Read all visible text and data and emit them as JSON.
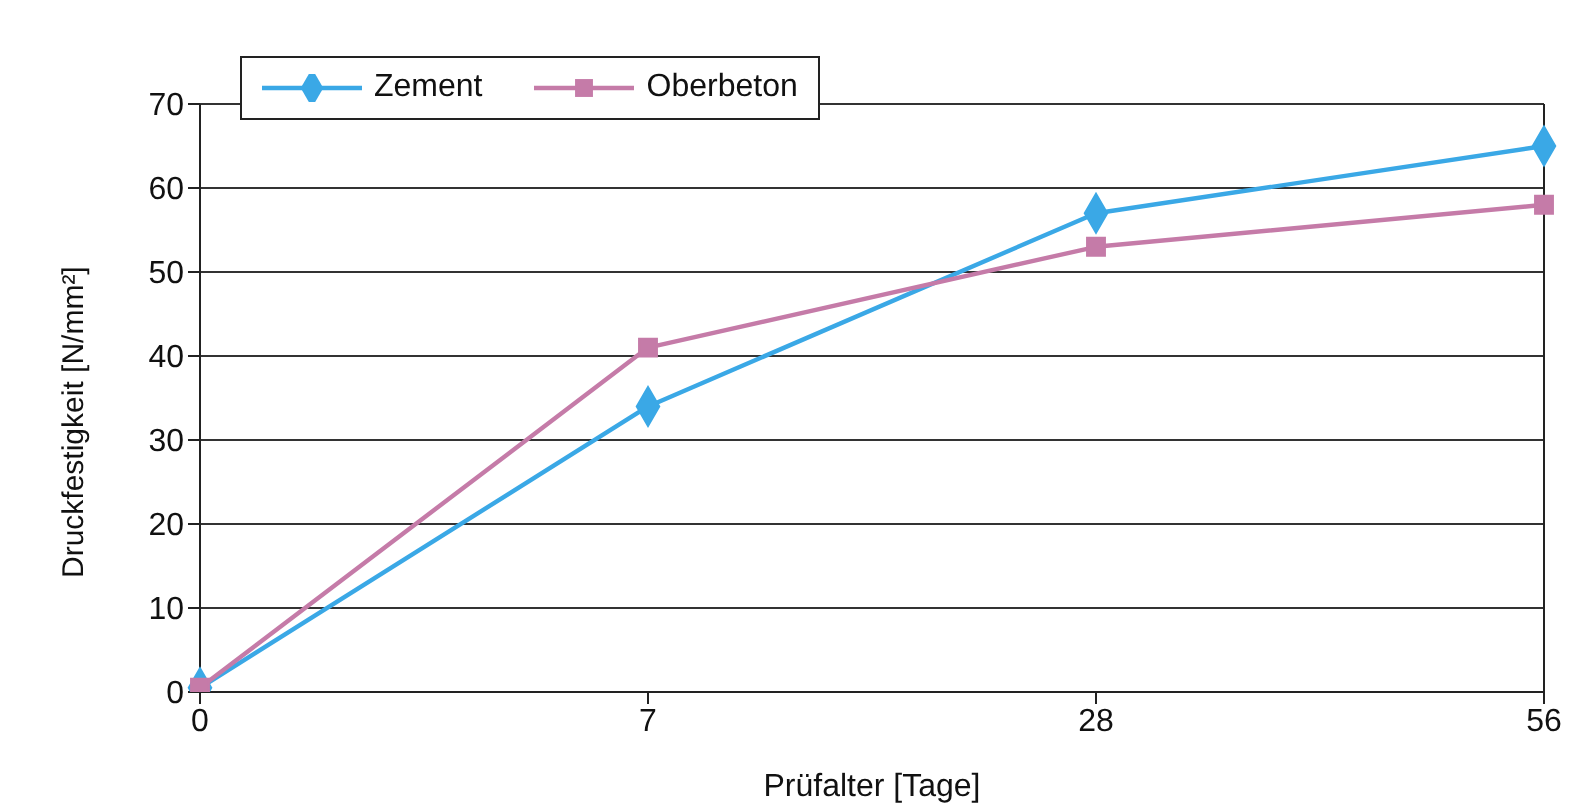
{
  "chart_data": {
    "type": "line",
    "xlabel": "Prüfalter [Tage]",
    "ylabel": "Druckfestigkeit [N/mm²]",
    "categories": [
      "0",
      "7",
      "28",
      "56"
    ],
    "series": [
      {
        "name": "Zement",
        "color": "#3aa8e6",
        "values": [
          0.5,
          34,
          57,
          65
        ],
        "marker": "diamond"
      },
      {
        "name": "Oberbeton",
        "color": "#c57ba8",
        "values": [
          0.5,
          41,
          53,
          58
        ],
        "marker": "square"
      }
    ],
    "ylim": [
      0,
      70
    ],
    "yticks": [
      0,
      10,
      20,
      30,
      40,
      50,
      60,
      70
    ],
    "grid": "y",
    "legend": "top left",
    "line_style": "solid"
  }
}
